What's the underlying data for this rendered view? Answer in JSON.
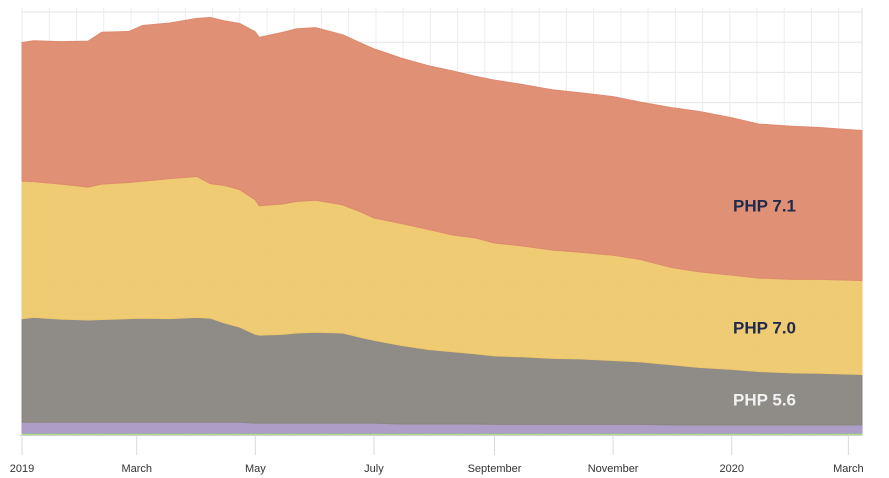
{
  "chart_data": {
    "type": "area",
    "stacked": true,
    "grid": true,
    "legend": "inline",
    "x_start": "2019-01-01",
    "x_end": "2020-03-08",
    "ylim": [
      0,
      100
    ],
    "x_ticks": [
      {
        "date": "2019-01-01",
        "label": "2019"
      },
      {
        "date": "2019-03-01",
        "label": "March"
      },
      {
        "date": "2019-05-01",
        "label": "May"
      },
      {
        "date": "2019-07-01",
        "label": "July"
      },
      {
        "date": "2019-09-01",
        "label": "September"
      },
      {
        "date": "2019-11-01",
        "label": "November"
      },
      {
        "date": "2020-01-01",
        "label": "2020"
      },
      {
        "date": "2020-03-01",
        "label": "March"
      }
    ],
    "dates": [
      "2019-01-01",
      "2019-01-07",
      "2019-01-21",
      "2019-02-04",
      "2019-02-11",
      "2019-02-25",
      "2019-03-04",
      "2019-03-18",
      "2019-04-01",
      "2019-04-08",
      "2019-04-15",
      "2019-04-23",
      "2019-05-01",
      "2019-05-03",
      "2019-05-15",
      "2019-05-22",
      "2019-06-01",
      "2019-06-15",
      "2019-06-25",
      "2019-07-01",
      "2019-07-15",
      "2019-07-29",
      "2019-08-10",
      "2019-08-22",
      "2019-09-01",
      "2019-09-15",
      "2019-10-01",
      "2019-10-15",
      "2019-11-01",
      "2019-11-15",
      "2019-12-01",
      "2019-12-15",
      "2020-01-01",
      "2020-01-15",
      "2020-02-01",
      "2020-02-15",
      "2020-03-01",
      "2020-03-08"
    ],
    "series": [
      {
        "name": "",
        "color": "#a7e27b",
        "values": [
          0.4,
          0.4,
          0.4,
          0.4,
          0.4,
          0.4,
          0.4,
          0.4,
          0.4,
          0.4,
          0.4,
          0.4,
          0.4,
          0.4,
          0.4,
          0.4,
          0.4,
          0.4,
          0.4,
          0.4,
          0.4,
          0.4,
          0.4,
          0.4,
          0.4,
          0.4,
          0.4,
          0.4,
          0.4,
          0.4,
          0.4,
          0.4,
          0.4,
          0.4,
          0.4,
          0.4,
          0.4,
          0.4
        ]
      },
      {
        "name": "",
        "color": "#a899c4",
        "values": [
          2.6,
          2.6,
          2.6,
          2.6,
          2.6,
          2.6,
          2.6,
          2.6,
          2.6,
          2.6,
          2.6,
          2.6,
          2.4,
          2.4,
          2.4,
          2.4,
          2.4,
          2.4,
          2.4,
          2.4,
          2.2,
          2.2,
          2.2,
          2.2,
          2.1,
          2.1,
          2.1,
          2.1,
          2.1,
          2.1,
          2.0,
          2.0,
          2.0,
          2.0,
          2.0,
          2.0,
          2.0,
          2.0
        ]
      },
      {
        "name": "PHP 5.6",
        "color": "#898681",
        "values": [
          24.5,
          24.8,
          24.4,
          24.2,
          24.3,
          24.5,
          24.6,
          24.5,
          24.8,
          24.6,
          23.5,
          22.5,
          21.0,
          20.8,
          21.0,
          21.3,
          21.5,
          21.3,
          20.2,
          19.6,
          18.6,
          17.6,
          17.1,
          16.6,
          16.2,
          16.0,
          15.6,
          15.5,
          15.1,
          14.8,
          14.2,
          13.6,
          13.1,
          12.6,
          12.3,
          12.2,
          12.0,
          11.9
        ]
      },
      {
        "name": "PHP 7.0",
        "color": "#eec86b",
        "values": [
          32.5,
          32.1,
          31.9,
          31.4,
          32.0,
          32.2,
          32.4,
          33.1,
          33.3,
          31.8,
          32.5,
          32.5,
          31.8,
          30.6,
          30.8,
          31.1,
          31.2,
          30.3,
          29.6,
          28.9,
          28.8,
          28.4,
          27.6,
          27.4,
          26.7,
          26.2,
          25.6,
          25.2,
          24.9,
          24.2,
          23.0,
          22.6,
          22.3,
          22.1,
          22.1,
          22.2,
          22.2,
          22.2
        ]
      },
      {
        "name": "PHP 7.1",
        "color": "#de8a6e",
        "values": [
          32.8,
          33.3,
          33.7,
          34.5,
          35.9,
          35.7,
          36.8,
          36.8,
          37.4,
          39.3,
          38.9,
          39.3,
          39.7,
          39.8,
          40.6,
          40.8,
          40.8,
          40.2,
          39.9,
          40.0,
          39.1,
          38.7,
          38.8,
          38.2,
          38.5,
          38.2,
          37.9,
          37.7,
          37.5,
          37.2,
          37.8,
          37.9,
          37.2,
          36.4,
          36.2,
          35.9,
          35.6,
          35.5
        ]
      }
    ]
  }
}
